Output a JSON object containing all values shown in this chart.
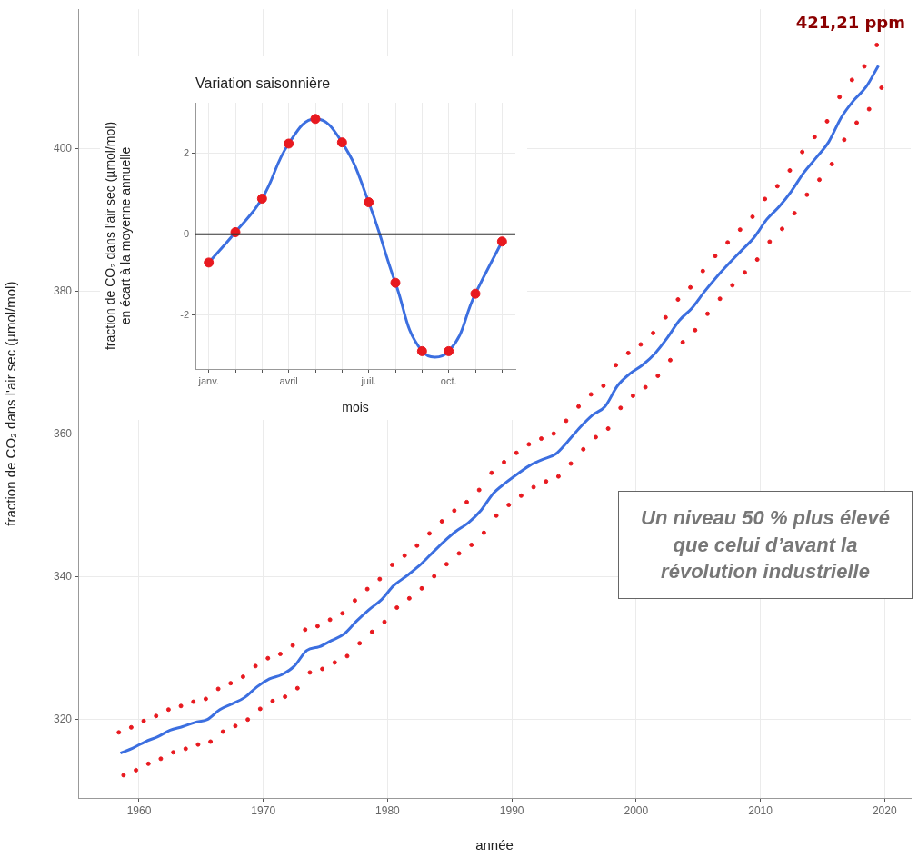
{
  "chart_data": [
    {
      "type": "line",
      "xlabel": "année",
      "ylabel": "fraction de CO₂ dans l'air sec (µmol/mol)",
      "xlim": [
        1955.1,
        2022.1
      ],
      "ylim": [
        309,
        419.6
      ],
      "xticks": [
        1960,
        1970,
        1980,
        1990,
        2000,
        2010,
        2020
      ],
      "yticks": [
        320,
        340,
        360,
        380,
        400
      ],
      "grid": true,
      "annotations": [
        "421,21 ppm",
        "Un niveau 50 % plus élevé que celui d’avant la révolution industrielle"
      ],
      "series": [
        {
          "type": "scatter",
          "marker": "circle",
          "color": "#e8191f",
          "x": [
            1958.37,
            1958.75,
            1959.37,
            1959.75,
            1960.37,
            1960.75,
            1961.37,
            1961.75,
            1962.37,
            1962.75,
            1963.37,
            1963.75,
            1964.37,
            1964.75,
            1965.37,
            1965.75,
            1966.37,
            1966.75,
            1967.37,
            1967.75,
            1968.37,
            1968.75,
            1969.37,
            1969.75,
            1970.37,
            1970.75,
            1971.37,
            1971.75,
            1972.37,
            1972.75,
            1973.37,
            1973.75,
            1974.37,
            1974.75,
            1975.37,
            1975.75,
            1976.37,
            1976.75,
            1977.37,
            1977.75,
            1978.37,
            1978.75,
            1979.37,
            1979.75,
            1980.37,
            1980.75,
            1981.37,
            1981.75,
            1982.37,
            1982.75,
            1983.37,
            1983.75,
            1984.37,
            1984.75,
            1985.37,
            1985.75,
            1986.37,
            1986.75,
            1987.37,
            1987.75,
            1988.37,
            1988.75,
            1989.37,
            1989.75,
            1990.37,
            1990.75,
            1991.37,
            1991.75,
            1992.37,
            1992.75,
            1993.37,
            1993.75,
            1994.37,
            1994.75,
            1995.37,
            1995.75,
            1996.37,
            1996.75,
            1997.37,
            1997.75,
            1998.37,
            1998.75,
            1999.37,
            1999.75,
            2000.37,
            2000.75,
            2001.37,
            2001.75,
            2002.37,
            2002.75,
            2003.37,
            2003.75,
            2004.37,
            2004.75,
            2005.37,
            2005.75,
            2006.37,
            2006.75,
            2007.37,
            2007.75,
            2008.37,
            2008.75,
            2009.37,
            2009.75,
            2010.37,
            2010.75,
            2011.37,
            2011.75,
            2012.37,
            2012.75,
            2013.37,
            2013.75,
            2014.37,
            2014.75,
            2015.37,
            2015.75,
            2016.37,
            2016.75,
            2017.37,
            2017.75,
            2018.37,
            2018.75,
            2019.37,
            2019.75
          ],
          "values": [
            318.2,
            312.2,
            318.9,
            312.9,
            319.8,
            313.8,
            320.5,
            314.5,
            321.4,
            315.4,
            321.9,
            315.9,
            322.5,
            316.5,
            322.9,
            316.9,
            324.3,
            318.3,
            325.1,
            319.1,
            326.0,
            320.0,
            327.5,
            321.5,
            328.6,
            322.6,
            329.2,
            323.2,
            330.4,
            324.4,
            332.6,
            326.6,
            333.1,
            327.1,
            334.0,
            328.0,
            334.9,
            328.9,
            336.7,
            330.7,
            338.3,
            332.3,
            339.7,
            333.7,
            341.7,
            335.7,
            343.0,
            337.0,
            344.4,
            338.4,
            346.1,
            340.1,
            347.8,
            341.8,
            349.3,
            343.3,
            350.5,
            344.5,
            352.2,
            346.2,
            354.6,
            348.6,
            356.1,
            350.1,
            357.4,
            351.4,
            358.6,
            352.6,
            359.4,
            353.4,
            360.1,
            354.1,
            361.9,
            355.9,
            363.9,
            357.9,
            365.6,
            359.6,
            366.8,
            360.8,
            369.7,
            363.7,
            371.4,
            365.4,
            372.6,
            366.6,
            374.2,
            368.2,
            376.4,
            370.4,
            378.9,
            372.9,
            380.6,
            374.6,
            382.9,
            376.9,
            385.0,
            379.0,
            386.9,
            380.9,
            388.7,
            382.7,
            390.5,
            384.5,
            393.0,
            387.0,
            394.8,
            388.8,
            397.0,
            391.0,
            399.6,
            393.6,
            401.7,
            395.7,
            403.9,
            397.9,
            407.3,
            401.3,
            409.7,
            403.7,
            411.6,
            405.6,
            414.6,
            408.6
          ]
        },
        {
          "type": "line",
          "color": "#3c6fe0",
          "x": [
            1958.5,
            1959.5,
            1960.5,
            1961.5,
            1962.5,
            1963.5,
            1964.5,
            1965.5,
            1966.5,
            1967.5,
            1968.5,
            1969.5,
            1970.5,
            1971.5,
            1972.5,
            1973.5,
            1974.5,
            1975.5,
            1976.5,
            1977.5,
            1978.5,
            1979.5,
            1980.5,
            1981.5,
            1982.5,
            1983.5,
            1984.5,
            1985.5,
            1986.5,
            1987.5,
            1988.5,
            1989.5,
            1990.5,
            1991.5,
            1992.5,
            1993.5,
            1994.5,
            1995.5,
            1996.5,
            1997.5,
            1998.5,
            1999.5,
            2000.5,
            2001.5,
            2002.5,
            2003.5,
            2004.5,
            2005.5,
            2006.5,
            2007.5,
            2008.5,
            2009.5,
            2010.5,
            2011.5,
            2012.5,
            2013.5,
            2014.5,
            2015.5,
            2016.5,
            2017.5,
            2018.5,
            2019.5
          ],
          "values": [
            315.3,
            316.0,
            316.9,
            317.6,
            318.5,
            319.0,
            319.6,
            320.0,
            321.4,
            322.2,
            323.1,
            324.6,
            325.7,
            326.3,
            327.5,
            329.7,
            330.2,
            331.1,
            332.0,
            333.8,
            335.4,
            336.8,
            338.8,
            340.1,
            341.5,
            343.2,
            344.9,
            346.4,
            347.6,
            349.3,
            351.7,
            353.2,
            354.5,
            355.7,
            356.5,
            357.2,
            359.0,
            361.0,
            362.7,
            363.9,
            366.8,
            368.5,
            369.7,
            371.3,
            373.5,
            376.0,
            377.7,
            380.0,
            382.1,
            384.0,
            385.8,
            387.6,
            390.1,
            391.9,
            394.1,
            396.7,
            398.8,
            401.0,
            404.4,
            406.8,
            408.7,
            411.7
          ]
        }
      ]
    },
    {
      "type": "line",
      "title": "Variation saisonnière",
      "xlabel": "mois",
      "ylabel": "fraction de CO₂ dans l'air sec (µmol/mol)\nen écart à la moyenne annuelle",
      "categories": [
        "janv.",
        null,
        null,
        "avril",
        null,
        null,
        "juil.",
        null,
        null,
        "oct.",
        null,
        null
      ],
      "ylim": [
        -3.33,
        3.25
      ],
      "yticks": [
        -2,
        0,
        2
      ],
      "grid": true,
      "ref_lines": [
        {
          "axis": "y",
          "value": 0,
          "color": "#333333"
        }
      ],
      "series": [
        {
          "type": "line",
          "color": "#3c6fe0",
          "values": [
            -0.7,
            0.05,
            0.88,
            2.24,
            2.85,
            2.27,
            0.79,
            -1.2,
            -2.89,
            -2.89,
            -1.47,
            -0.18
          ]
        },
        {
          "type": "scatter",
          "marker": "circle",
          "color": "#e8191f",
          "values": [
            -0.7,
            0.05,
            0.88,
            2.24,
            2.85,
            2.27,
            0.79,
            -1.2,
            -2.89,
            -2.89,
            -1.47,
            -0.18
          ]
        }
      ]
    }
  ]
}
